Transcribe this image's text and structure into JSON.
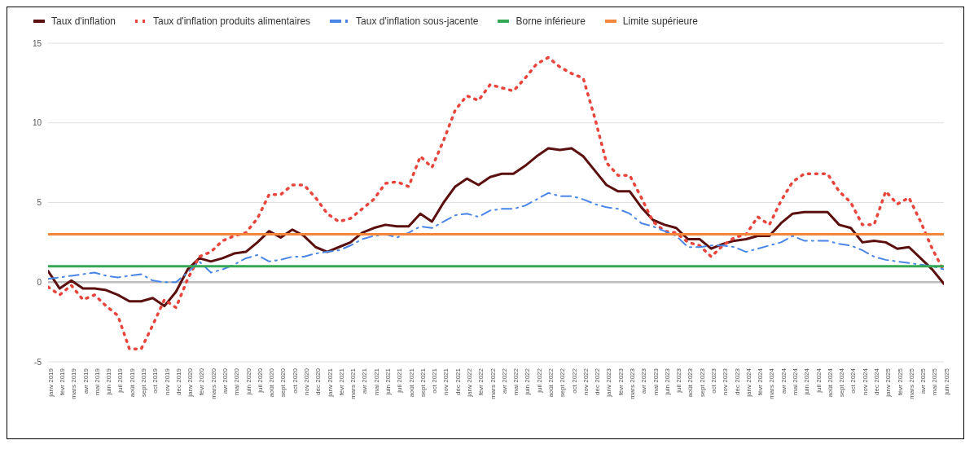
{
  "chart_data": {
    "type": "line",
    "categories": [
      "janv 2019",
      "févr 2019",
      "mars 2019",
      "avr 2019",
      "mai 2019",
      "juin 2019",
      "juil 2019",
      "août 2019",
      "sept 2019",
      "oct 2019",
      "nov 2019",
      "déc 2019",
      "janv 2020",
      "févr 2020",
      "mars 2020",
      "avr 2020",
      "mai 2020",
      "juin 2020",
      "juil 2020",
      "août 2020",
      "sept 2020",
      "oct 2020",
      "nov 2020",
      "déc 2020",
      "janv 2021",
      "févr 2021",
      "mars 2021",
      "avr 2021",
      "mai 2021",
      "juin 2021",
      "juil 2021",
      "août 2021",
      "sept 2021",
      "oct 2021",
      "nov 2021",
      "déc 2021",
      "janv 2022",
      "févr 2022",
      "mars 2022",
      "avr 2022",
      "mai 2022",
      "juin 2022",
      "juil 2022",
      "août 2022",
      "sept 2022",
      "oct 2022",
      "nov 2022",
      "déc 2022",
      "janv 2023",
      "févr 2023",
      "mars 2023",
      "avr 2023",
      "mai 2023",
      "juin 2023",
      "juil 2023",
      "août 2023",
      "sept 2023",
      "oct 2023",
      "nov 2023",
      "déc 2023",
      "janv 2024",
      "févr 2024",
      "mars 2024",
      "avr 2024",
      "mai 2024",
      "juin 2024",
      "juil 2024",
      "août 2024",
      "sept 2024",
      "oct 2024",
      "nov 2024",
      "déc 2024",
      "janv 2025",
      "févr 2025",
      "mars 2025",
      "avr 2025",
      "mai 2025",
      "juin 2025"
    ],
    "series": [
      {
        "name": "Taux d'inflation",
        "color": "#5b0f0f",
        "line_style": "solid",
        "values": [
          0.7,
          -0.4,
          0.1,
          -0.4,
          -0.4,
          -0.5,
          -0.8,
          -1.2,
          -1.2,
          -1.0,
          -1.5,
          -0.6,
          0.8,
          1.5,
          1.3,
          1.5,
          1.8,
          1.9,
          2.5,
          3.2,
          2.8,
          3.3,
          2.9,
          2.2,
          1.9,
          2.2,
          2.5,
          3.1,
          3.4,
          3.6,
          3.5,
          3.5,
          4.3,
          3.8,
          5.0,
          6.0,
          6.5,
          6.1,
          6.6,
          6.8,
          6.8,
          7.3,
          7.9,
          8.4,
          8.3,
          8.4,
          7.9,
          7.0,
          6.1,
          5.7,
          5.7,
          4.7,
          3.9,
          3.6,
          3.4,
          2.7,
          2.7,
          2.1,
          2.4,
          2.6,
          2.7,
          2.9,
          2.9,
          3.7,
          4.3,
          4.4,
          4.4,
          4.4,
          3.6,
          3.4,
          2.5,
          2.6,
          2.5,
          2.1,
          2.2,
          1.5,
          0.8,
          -0.1
        ]
      },
      {
        "name": "Taux d'inflation produits alimentaires",
        "color": "#e8453c",
        "line_style": "dotted",
        "values": [
          -0.3,
          -0.8,
          -0.2,
          -1.1,
          -0.8,
          -1.5,
          -2.1,
          -4.2,
          -4.2,
          -2.7,
          -1.1,
          -1.6,
          0.2,
          1.6,
          1.9,
          2.6,
          2.9,
          3.1,
          4.0,
          5.5,
          5.5,
          6.1,
          6.1,
          5.3,
          4.3,
          3.8,
          4.0,
          4.6,
          5.2,
          6.2,
          6.3,
          6.0,
          7.9,
          7.2,
          8.9,
          10.8,
          11.7,
          11.4,
          12.4,
          12.2,
          12.0,
          12.8,
          13.7,
          14.1,
          13.5,
          13.1,
          12.8,
          10.3,
          7.5,
          6.7,
          6.7,
          5.3,
          3.8,
          3.2,
          3.1,
          2.5,
          2.3,
          1.6,
          2.3,
          2.8,
          3.0,
          4.1,
          3.6,
          5.1,
          6.3,
          6.8,
          6.8,
          6.8,
          5.7,
          5.0,
          3.6,
          3.6,
          5.7,
          4.9,
          5.3,
          3.8,
          2.1,
          0.7
        ]
      },
      {
        "name": "Taux d'inflation sous-jacente",
        "color": "#4a86e8",
        "line_style": "dashed",
        "values": [
          0.2,
          0.3,
          0.4,
          0.5,
          0.6,
          0.4,
          0.3,
          0.4,
          0.5,
          0.1,
          0.0,
          0.0,
          0.6,
          1.3,
          0.6,
          0.8,
          1.1,
          1.5,
          1.7,
          1.3,
          1.4,
          1.6,
          1.6,
          1.8,
          1.9,
          2.0,
          2.3,
          2.7,
          2.9,
          3.0,
          2.8,
          3.1,
          3.5,
          3.4,
          3.8,
          4.2,
          4.3,
          4.1,
          4.5,
          4.6,
          4.6,
          4.8,
          5.2,
          5.6,
          5.4,
          5.4,
          5.2,
          4.9,
          4.7,
          4.6,
          4.3,
          3.7,
          3.5,
          3.2,
          2.9,
          2.2,
          2.2,
          2.3,
          2.3,
          2.2,
          1.9,
          2.1,
          2.3,
          2.5,
          2.9,
          2.6,
          2.6,
          2.6,
          2.4,
          2.3,
          2.0,
          1.6,
          1.4,
          1.3,
          1.2,
          1.1,
          1.0,
          0.8
        ]
      },
      {
        "name": "Borne inférieure",
        "color": "#34a853",
        "line_style": "solid",
        "values": [
          1,
          1,
          1,
          1,
          1,
          1,
          1,
          1,
          1,
          1,
          1,
          1,
          1,
          1,
          1,
          1,
          1,
          1,
          1,
          1,
          1,
          1,
          1,
          1,
          1,
          1,
          1,
          1,
          1,
          1,
          1,
          1,
          1,
          1,
          1,
          1,
          1,
          1,
          1,
          1,
          1,
          1,
          1,
          1,
          1,
          1,
          1,
          1,
          1,
          1,
          1,
          1,
          1,
          1,
          1,
          1,
          1,
          1,
          1,
          1,
          1,
          1,
          1,
          1,
          1,
          1,
          1,
          1,
          1,
          1,
          1,
          1,
          1,
          1,
          1,
          1,
          1,
          1
        ]
      },
      {
        "name": "Limite supérieure",
        "color": "#f4863b",
        "line_style": "solid",
        "values": [
          3,
          3,
          3,
          3,
          3,
          3,
          3,
          3,
          3,
          3,
          3,
          3,
          3,
          3,
          3,
          3,
          3,
          3,
          3,
          3,
          3,
          3,
          3,
          3,
          3,
          3,
          3,
          3,
          3,
          3,
          3,
          3,
          3,
          3,
          3,
          3,
          3,
          3,
          3,
          3,
          3,
          3,
          3,
          3,
          3,
          3,
          3,
          3,
          3,
          3,
          3,
          3,
          3,
          3,
          3,
          3,
          3,
          3,
          3,
          3,
          3,
          3,
          3,
          3,
          3,
          3,
          3,
          3,
          3,
          3,
          3,
          3,
          3,
          3,
          3,
          3,
          3,
          3
        ]
      }
    ],
    "ylim": [
      -5,
      15
    ],
    "yticks": [
      -5,
      0,
      5,
      10,
      15
    ],
    "ref_lines": [
      {
        "axis": "y",
        "value": 0,
        "color": "#bdbdbd"
      }
    ],
    "grid": "y",
    "legend": "top left",
    "marker": "none"
  }
}
